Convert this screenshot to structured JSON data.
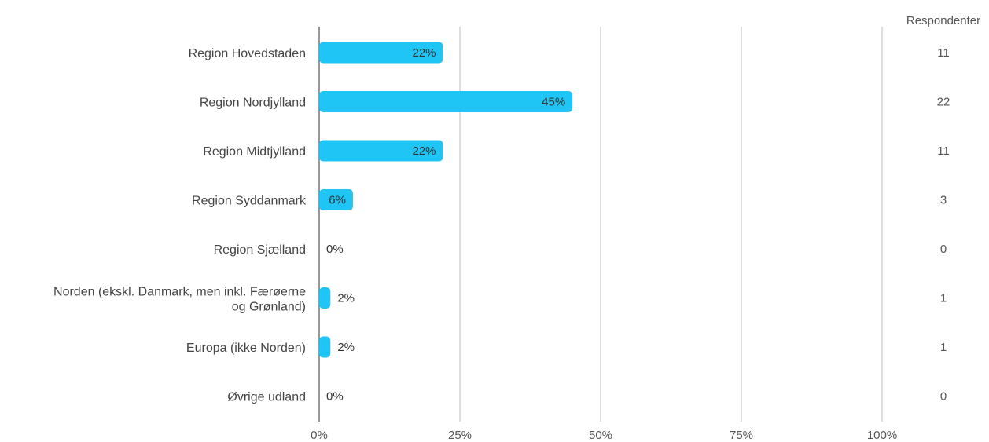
{
  "chart_data": {
    "type": "bar",
    "orientation": "horizontal",
    "categories": [
      "Region Hovedstaden",
      "Region Nordjylland",
      "Region Midtjylland",
      "Region Syddanmark",
      "Region Sjælland",
      "Norden (ekskl. Danmark, men inkl. Færøerne og Grønland)",
      "Europa (ikke Norden)",
      "Øvrige udland"
    ],
    "values": [
      22,
      45,
      22,
      6,
      0,
      2,
      2,
      0
    ],
    "value_labels": [
      "22%",
      "45%",
      "22%",
      "6%",
      "0%",
      "2%",
      "2%",
      "0%"
    ],
    "respondents": [
      11,
      22,
      11,
      3,
      0,
      1,
      1,
      0
    ],
    "respondents_header": "Respondenter",
    "xlim": [
      0,
      100
    ],
    "x_ticks": [
      "0%",
      "25%",
      "50%",
      "75%",
      "100%"
    ],
    "x_tick_values": [
      0,
      25,
      50,
      75,
      100
    ],
    "grid": true,
    "bar_color": "#1fc5f4",
    "title": "",
    "xlabel": "",
    "ylabel": ""
  }
}
